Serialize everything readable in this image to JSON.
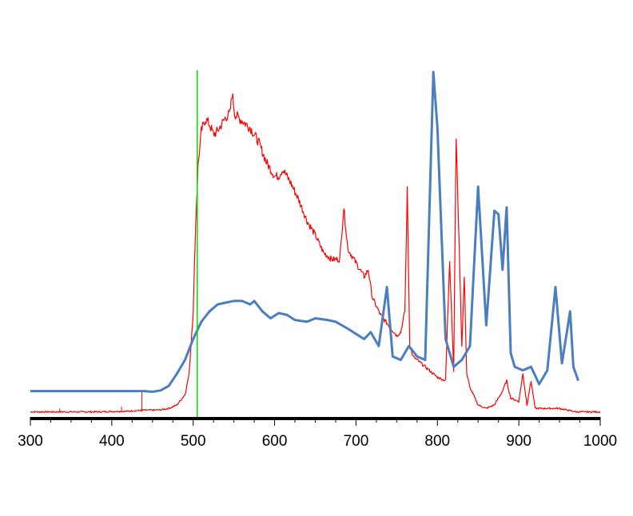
{
  "chart_data": {
    "type": "line",
    "title": "",
    "xlabel": "",
    "ylabel": "",
    "xlim": [
      300,
      1000
    ],
    "ylim": [
      0,
      1
    ],
    "y_axis_visible": false,
    "grid": false,
    "legend": "none",
    "x_ticks": [
      300,
      400,
      500,
      600,
      700,
      800,
      900,
      1000
    ],
    "x_tick_labels": [
      "300",
      "400",
      "500",
      "600",
      "700",
      "800",
      "900",
      "1000"
    ],
    "axis_color": "#000000",
    "marker_line": {
      "x": 505,
      "color": "#00dd00"
    },
    "series": [
      {
        "color": "#ff0000",
        "style": "thin-noisy",
        "x": [
          300,
          340,
          380,
          420,
          440,
          450,
          460,
          470,
          480,
          490,
          495,
          500,
          503,
          506,
          510,
          515,
          520,
          525,
          530,
          535,
          540,
          545,
          548,
          551,
          555,
          560,
          570,
          580,
          590,
          600,
          605,
          610,
          620,
          630,
          640,
          650,
          660,
          670,
          680,
          685,
          690,
          700,
          710,
          715,
          720,
          730,
          740,
          750,
          755,
          760,
          763,
          766,
          770,
          780,
          790,
          800,
          810,
          815,
          820,
          823,
          826,
          830,
          833,
          836,
          840,
          850,
          860,
          870,
          880,
          885,
          890,
          900,
          905,
          910,
          915,
          920,
          930,
          950,
          970,
          1000
        ],
        "y": [
          0.01,
          0.01,
          0.01,
          0.012,
          0.015,
          0.015,
          0.016,
          0.02,
          0.03,
          0.06,
          0.12,
          0.3,
          0.55,
          0.72,
          0.82,
          0.855,
          0.84,
          0.81,
          0.82,
          0.84,
          0.86,
          0.87,
          0.93,
          0.87,
          0.86,
          0.85,
          0.83,
          0.79,
          0.73,
          0.69,
          0.69,
          0.71,
          0.67,
          0.62,
          0.56,
          0.52,
          0.47,
          0.45,
          0.45,
          0.6,
          0.48,
          0.44,
          0.4,
          0.42,
          0.34,
          0.29,
          0.26,
          0.23,
          0.24,
          0.3,
          0.65,
          0.2,
          0.17,
          0.15,
          0.13,
          0.11,
          0.1,
          0.45,
          0.13,
          0.8,
          0.55,
          0.2,
          0.4,
          0.12,
          0.08,
          0.03,
          0.02,
          0.03,
          0.07,
          0.1,
          0.05,
          0.04,
          0.12,
          0.03,
          0.1,
          0.02,
          0.02,
          0.02,
          0.01,
          0.01
        ]
      },
      {
        "color": "#4a7ebf",
        "style": "thick",
        "x": [
          300,
          400,
          440,
          450,
          460,
          470,
          480,
          490,
          500,
          510,
          520,
          530,
          540,
          550,
          560,
          570,
          575,
          585,
          595,
          605,
          615,
          625,
          640,
          650,
          665,
          675,
          690,
          710,
          718,
          728,
          738,
          745,
          755,
          765,
          775,
          785,
          795,
          800,
          810,
          820,
          830,
          840,
          850,
          860,
          870,
          875,
          880,
          885,
          890,
          895,
          905,
          915,
          925,
          935,
          945,
          953,
          963,
          967,
          973
        ],
        "y": [
          0.07,
          0.07,
          0.07,
          0.068,
          0.072,
          0.085,
          0.12,
          0.16,
          0.22,
          0.27,
          0.3,
          0.32,
          0.325,
          0.33,
          0.33,
          0.32,
          0.33,
          0.3,
          0.28,
          0.295,
          0.29,
          0.275,
          0.27,
          0.28,
          0.275,
          0.27,
          0.25,
          0.22,
          0.24,
          0.2,
          0.37,
          0.17,
          0.16,
          0.2,
          0.17,
          0.16,
          0.99,
          0.83,
          0.22,
          0.14,
          0.16,
          0.2,
          0.66,
          0.26,
          0.59,
          0.58,
          0.42,
          0.6,
          0.18,
          0.14,
          0.13,
          0.14,
          0.09,
          0.13,
          0.37,
          0.15,
          0.3,
          0.14,
          0.1
        ]
      }
    ]
  }
}
